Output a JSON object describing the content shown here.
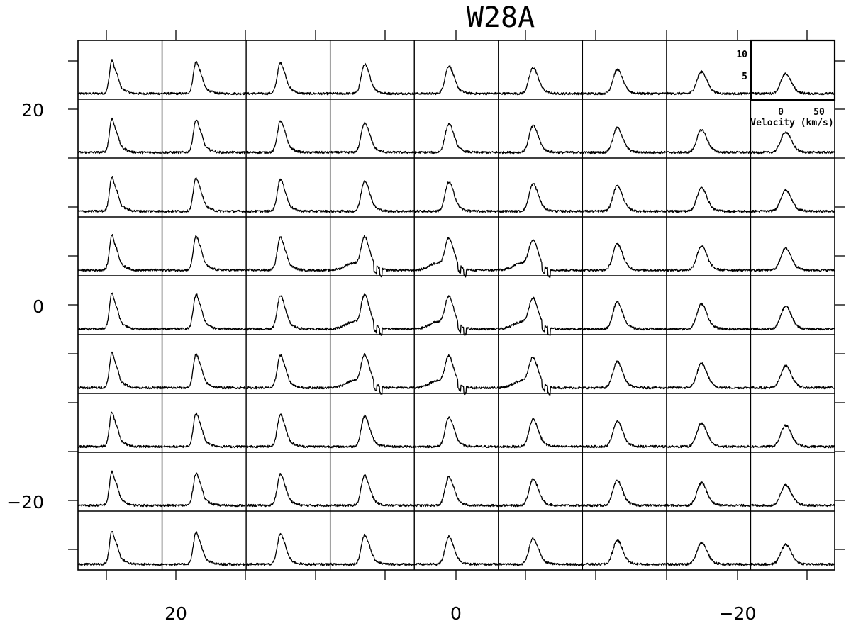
{
  "chart_data": {
    "type": "line",
    "title": "W28A",
    "x_ticks": [
      "20",
      "0",
      "−20"
    ],
    "y_ticks": [
      "20",
      "0",
      "−20"
    ],
    "grid": {
      "rows": 9,
      "cols": 9
    },
    "inset": {
      "x_ticks": [
        "0",
        "50"
      ],
      "y_ticks": [
        "5",
        "10"
      ],
      "xlabel": "Velocity (km/s)"
    },
    "spectra_note_free": true
  }
}
